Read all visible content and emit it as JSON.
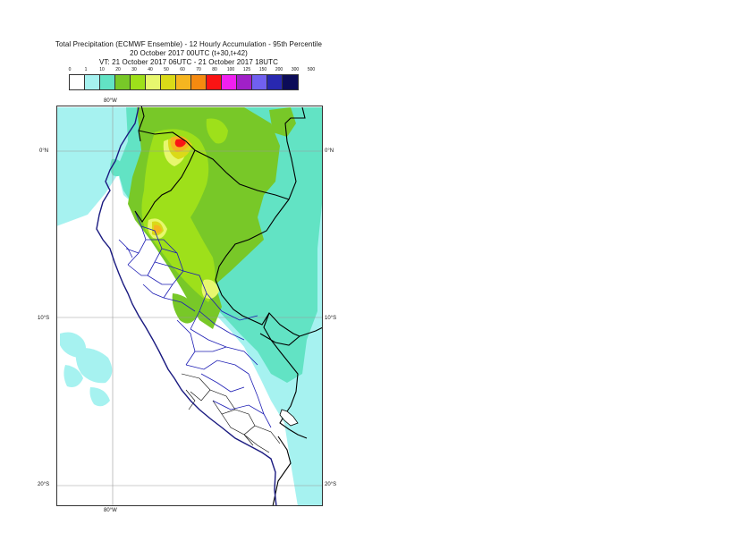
{
  "title": {
    "line1": "Total Precipitation (ECMWF Ensemble) - 12 Hourly Accumulation - 95th Percentile",
    "line2": "20 October 2017 00UTC (t+30,t+42)",
    "line3": "VT: 21 October 2017 06UTC - 21 October 2017 18UTC"
  },
  "legend": {
    "labels": [
      "0",
      "1",
      "10",
      "20",
      "30",
      "40",
      "50",
      "60",
      "70",
      "80",
      "100",
      "125",
      "150",
      "200",
      "300",
      "500"
    ],
    "colors": [
      "#ffffff",
      "#a6f2f0",
      "#62e3c4",
      "#78c828",
      "#9ee01a",
      "#e7f76e",
      "#dada18",
      "#f5b520",
      "#f58a10",
      "#fa1414",
      "#f020f0",
      "#a020c8",
      "#7060f0",
      "#2828b0",
      "#0c0c58"
    ]
  },
  "axes": {
    "lon_top": "80°W",
    "lon_bottom": "80°W",
    "lat_0_left": "0°N",
    "lat_0_right": "0°N",
    "lat_10_left": "10°S",
    "lat_10_right": "10°S",
    "lat_20_left": "20°S",
    "lat_20_right": "20°S"
  },
  "colors": {
    "coast": "#1a1a80",
    "borders": "#000000",
    "regions": "#1c1cb4",
    "grid": "#9a9a9a"
  }
}
